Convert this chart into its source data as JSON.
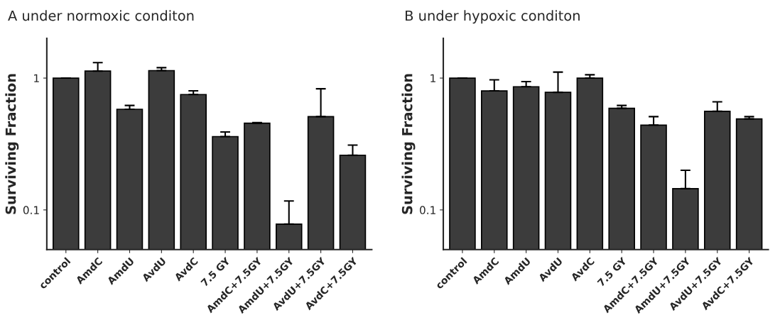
{
  "chart_data": [
    {
      "type": "bar",
      "title": "A under normoxic conditon",
      "ylabel": "Surviving Fraction",
      "log": "y",
      "grid": false,
      "color": "#3c3c3c",
      "categories": [
        "control",
        "AmdC",
        "AmdU",
        "AvdU",
        "AvdC",
        "7.5 GY",
        "AmdC+7.5GY",
        "AmdU+7.5GY",
        "AvdU+7.5GY",
        "AvdC+7.5GY"
      ],
      "values": [
        1.0,
        1.13,
        0.58,
        1.14,
        0.75,
        0.36,
        0.455,
        0.078,
        0.51,
        0.26
      ],
      "errors": [
        [
          1.0,
          1.0
        ],
        [
          1.13,
          1.31
        ],
        [
          0.58,
          0.62
        ],
        [
          1.14,
          1.2
        ],
        [
          0.75,
          0.8
        ],
        [
          0.36,
          0.39
        ],
        [
          0.455,
          0.46
        ],
        [
          0.078,
          0.117
        ],
        [
          0.51,
          0.83
        ],
        [
          0.26,
          0.31
        ]
      ],
      "ylim": [
        0.05,
        2
      ],
      "yticks": [
        0.1,
        1
      ]
    },
    {
      "type": "bar",
      "title": "B under hypoxic conditon",
      "ylabel": "Surviving Fraction",
      "log": "y",
      "grid": false,
      "color": "#3c3c3c",
      "categories": [
        "control",
        "AmdC",
        "AmdU",
        "AvdU",
        "AvdC",
        "7.5 GY",
        "AmdC+7.5GY",
        "AmdU+7.5GY",
        "AvdU+7.5GY",
        "AvdC+7.5GY"
      ],
      "values": [
        1.0,
        0.8,
        0.86,
        0.78,
        1.0,
        0.59,
        0.44,
        0.145,
        0.56,
        0.49
      ],
      "errors": [
        [
          1.0,
          1.0
        ],
        [
          0.8,
          0.97
        ],
        [
          0.86,
          0.94
        ],
        [
          0.78,
          1.11
        ],
        [
          1.0,
          1.06
        ],
        [
          0.59,
          0.62
        ],
        [
          0.44,
          0.51
        ],
        [
          0.145,
          0.2
        ],
        [
          0.56,
          0.66
        ],
        [
          0.49,
          0.51
        ]
      ],
      "ylim": [
        0.05,
        2
      ],
      "yticks": [
        0.1,
        1
      ]
    }
  ]
}
